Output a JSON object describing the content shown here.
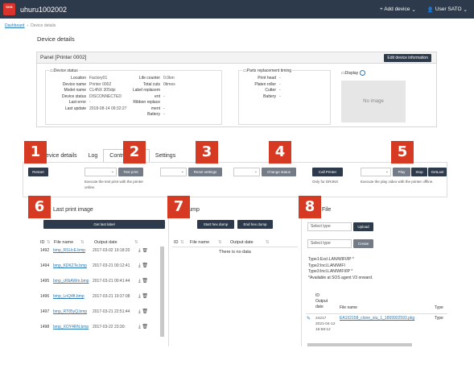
{
  "topbar": {
    "logo_text": "SOS",
    "app_title": "uhuru1002002",
    "add_device": "+ Add device",
    "user": "User SATO"
  },
  "breadcrumb": {
    "home": "Dashboard",
    "current": "Device details"
  },
  "page_title": "Device details",
  "panel": {
    "title": "Panel [Printer 0002]",
    "edit_button": "Edit device information",
    "status_title": "Device status",
    "status_left": [
      {
        "k": "Location",
        "v": "Factory01"
      },
      {
        "k": "Device name",
        "v": "Printer 0002"
      },
      {
        "k": "Model name",
        "v": "CL4NX 305dpi"
      },
      {
        "k": "Device status",
        "v": "DISCONNECTED"
      },
      {
        "k": "Last error",
        "v": "-"
      },
      {
        "k": "Last update",
        "v": "2018-08-14 09:32:27"
      }
    ],
    "status_right": [
      {
        "k": "Life counter",
        "v": "0.0km"
      },
      {
        "k": "Total cuts",
        "v": "0times"
      },
      {
        "k": "Label replacem ent",
        "v": "-"
      },
      {
        "k": "Ribbon replace ment",
        "v": "-"
      },
      {
        "k": "Battery",
        "v": "-"
      }
    ],
    "parts_title": "Parts replacement timing",
    "parts": [
      {
        "k": "Print head",
        "v": "-"
      },
      {
        "k": "Platen roller",
        "v": "-"
      },
      {
        "k": "Cutter",
        "v": "-"
      },
      {
        "k": "Battery",
        "v": "-"
      }
    ],
    "display_title": "Display",
    "no_image": "No image"
  },
  "tabs": [
    {
      "label": "Device details"
    },
    {
      "label": "Log"
    },
    {
      "label": "Control panel"
    },
    {
      "label": "Settings"
    }
  ],
  "actions": {
    "restart": "Restart",
    "test_print": "Test print",
    "test_print_note": "Execute the test print with the printer online.",
    "reset_settings": "Reset settings",
    "change_status": "Change status",
    "call_printer": "Call Printer",
    "call_printer_note": "Only for DR4NX",
    "play": "Play",
    "stop": "Stop",
    "getlast": "GetLast",
    "play_note": "Execute the play video with the printer offline."
  },
  "callouts": [
    "1",
    "2",
    "3",
    "4",
    "5",
    "6",
    "7",
    "8"
  ],
  "print_image": {
    "title": "Last print image",
    "get_button": "Get last label",
    "headers": {
      "id": "ID",
      "file": "File name",
      "date": "Output date"
    },
    "rows": [
      {
        "id": "1492",
        "file": "bmp_RSUcE.bmp",
        "date": "2017-03-02 19:18:20"
      },
      {
        "id": "1494",
        "file": "bmp_KDK2Te.bmp",
        "date": "2017-03-21 00:12:41"
      },
      {
        "id": "1495",
        "file": "bmp_cRbAWm.bmp",
        "date": "2017-03-21 00:41:44"
      },
      {
        "id": "1496",
        "file": "bmp_LnQ4ft.bmp",
        "date": "2017-03-21 19:37:08"
      },
      {
        "id": "1497",
        "file": "bmp_RT85yQ.bmp",
        "date": "2017-03-21 22:51:44"
      },
      {
        "id": "1498",
        "file": "bmp_XOY4RN.bmp",
        "date": "2017-03-22 23:30:"
      }
    ]
  },
  "hex_dump": {
    "title": "Hex dump",
    "start": "Start hex dump",
    "end": "End hex dump",
    "headers": {
      "id": "ID",
      "file": "File name",
      "date": "Output date"
    },
    "empty": "There is no data"
  },
  "file_panel": {
    "title": "File",
    "select1": "Select type",
    "upload": "Upload",
    "select2": "Select type",
    "create": "Create",
    "info": [
      "Type1:Excl.LAN/WIFI/IP *",
      "Type2:Incl.LAN/WIFI",
      "Type3:Incl.LAN/WIFI/IP *",
      "*Available at SOS agent V3 onward."
    ],
    "headers": {
      "id": "ID",
      "date": "Output date",
      "file": "File name",
      "type": "Type"
    },
    "row": {
      "id": "24217",
      "date": "2021-04-12 16:58:12",
      "file": "EA102158_clone_stu_1_1869902593.pkg",
      "type": "Type"
    }
  }
}
